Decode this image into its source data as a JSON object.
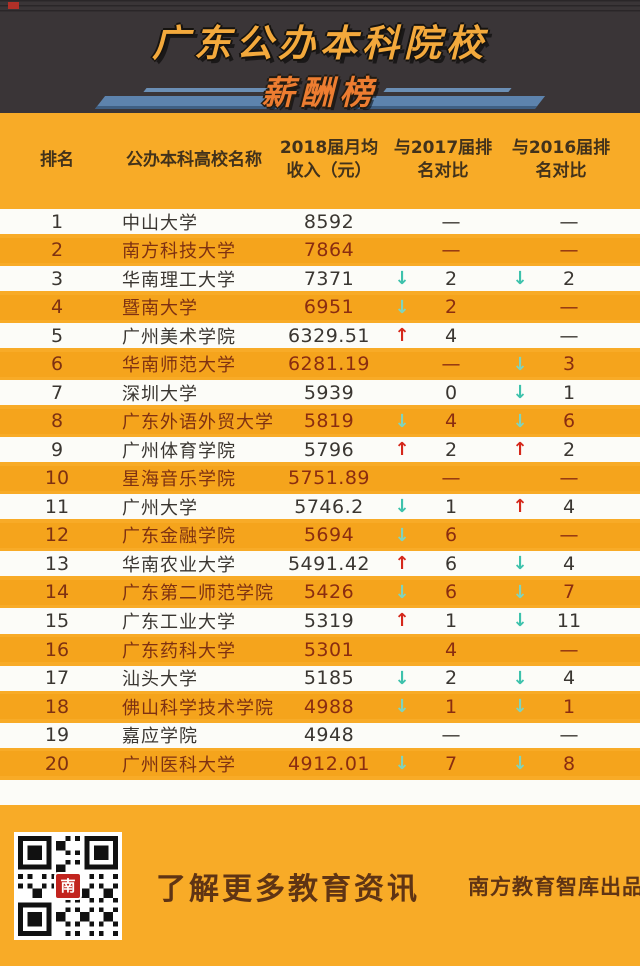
{
  "hero": {
    "title": "广东公办本科院校",
    "subtitle": "薪酬榜"
  },
  "table": {
    "headers": [
      {
        "text": "排名"
      },
      {
        "text": "公办本科高校名称"
      },
      {
        "text": "2018届月均\n收入（元）"
      },
      {
        "text": "与2017届排\n名对比"
      },
      {
        "text": "与2016届排\n名对比"
      }
    ],
    "rows": [
      {
        "rank": "1",
        "name": "中山大学",
        "income": "8592",
        "vs2017": {
          "dir": "dash",
          "value": "—"
        },
        "vs2016": {
          "dir": "dash",
          "value": "—"
        }
      },
      {
        "rank": "2",
        "name": "南方科技大学",
        "income": "7864",
        "vs2017": {
          "dir": "dash",
          "value": "—"
        },
        "vs2016": {
          "dir": "dash",
          "value": "—"
        }
      },
      {
        "rank": "3",
        "name": "华南理工大学",
        "income": "7371",
        "vs2017": {
          "dir": "down",
          "value": "2"
        },
        "vs2016": {
          "dir": "down",
          "value": "2"
        }
      },
      {
        "rank": "4",
        "name": "暨南大学",
        "income": "6951",
        "vs2017": {
          "dir": "down",
          "value": "2"
        },
        "vs2016": {
          "dir": "dash",
          "value": "—"
        }
      },
      {
        "rank": "5",
        "name": "广州美术学院",
        "income": "6329.51",
        "vs2017": {
          "dir": "up",
          "value": "4"
        },
        "vs2016": {
          "dir": "dash",
          "value": "—"
        }
      },
      {
        "rank": "6",
        "name": "华南师范大学",
        "income": "6281.19",
        "vs2017": {
          "dir": "dash",
          "value": "—"
        },
        "vs2016": {
          "dir": "down",
          "value": "3"
        }
      },
      {
        "rank": "7",
        "name": "深圳大学",
        "income": "5939",
        "vs2017": {
          "dir": "none",
          "value": "0"
        },
        "vs2016": {
          "dir": "down",
          "value": "1"
        }
      },
      {
        "rank": "8",
        "name": "广东外语外贸大学",
        "income": "5819",
        "vs2017": {
          "dir": "down",
          "value": "4"
        },
        "vs2016": {
          "dir": "down",
          "value": "6"
        }
      },
      {
        "rank": "9",
        "name": "广州体育学院",
        "income": "5796",
        "vs2017": {
          "dir": "up",
          "value": "2"
        },
        "vs2016": {
          "dir": "up",
          "value": "2"
        }
      },
      {
        "rank": "10",
        "name": "星海音乐学院",
        "income": "5751.89",
        "vs2017": {
          "dir": "dash",
          "value": "—"
        },
        "vs2016": {
          "dir": "dash",
          "value": "—"
        }
      },
      {
        "rank": "11",
        "name": "广州大学",
        "income": "5746.2",
        "vs2017": {
          "dir": "down",
          "value": "1"
        },
        "vs2016": {
          "dir": "up",
          "value": "4"
        }
      },
      {
        "rank": "12",
        "name": "广东金融学院",
        "income": "5694",
        "vs2017": {
          "dir": "down",
          "value": "6"
        },
        "vs2016": {
          "dir": "dash",
          "value": "—"
        }
      },
      {
        "rank": "13",
        "name": "华南农业大学",
        "income": "5491.42",
        "vs2017": {
          "dir": "up",
          "value": "6"
        },
        "vs2016": {
          "dir": "down",
          "value": "4"
        }
      },
      {
        "rank": "14",
        "name": "广东第二师范学院",
        "income": "5426",
        "vs2017": {
          "dir": "down",
          "value": "6"
        },
        "vs2016": {
          "dir": "down",
          "value": "7"
        }
      },
      {
        "rank": "15",
        "name": "广东工业大学",
        "income": "5319",
        "vs2017": {
          "dir": "up",
          "value": "1"
        },
        "vs2016": {
          "dir": "down",
          "value": "11"
        }
      },
      {
        "rank": "16",
        "name": "广东药科大学",
        "income": "5301",
        "vs2017": {
          "dir": "none",
          "value": "4"
        },
        "vs2016": {
          "dir": "dash",
          "value": "—"
        }
      },
      {
        "rank": "17",
        "name": "汕头大学",
        "income": "5185",
        "vs2017": {
          "dir": "down",
          "value": "2"
        },
        "vs2016": {
          "dir": "down",
          "value": "4"
        }
      },
      {
        "rank": "18",
        "name": "佛山科学技术学院",
        "income": "4988",
        "vs2017": {
          "dir": "down",
          "value": "1"
        },
        "vs2016": {
          "dir": "down",
          "value": "1"
        }
      },
      {
        "rank": "19",
        "name": "嘉应学院",
        "income": "4948",
        "vs2017": {
          "dir": "dash",
          "value": "—"
        },
        "vs2016": {
          "dir": "dash",
          "value": "—"
        }
      },
      {
        "rank": "20",
        "name": "广州医科大学",
        "income": "4912.01",
        "vs2017": {
          "dir": "down",
          "value": "7"
        },
        "vs2016": {
          "dir": "down",
          "value": "8"
        }
      }
    ]
  },
  "footer": {
    "cta": "了解更多教育资讯",
    "credit": "南方教育智库出品",
    "qr_logo_glyph": "南"
  },
  "colors": {
    "background_yellow": "#f8ab27",
    "row_yellow": "#f5a41c",
    "header_dark": "#3a3537",
    "title_yellow": "#f3a93c",
    "subtitle_orange": "#ed7d31",
    "stripe_blue": "#5d83ad",
    "arrow_up_red": "#d5281b",
    "arrow_down_teal": "#3ec2ac",
    "footer_text_brown": "#5f3414"
  }
}
